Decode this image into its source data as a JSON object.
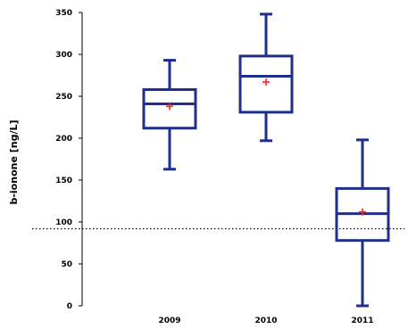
{
  "chart_data": {
    "type": "box",
    "title": "",
    "xlabel": "",
    "ylabel": "b-ionone [ng/L]",
    "ylim": [
      0,
      350
    ],
    "yticks": [
      0,
      50,
      100,
      150,
      200,
      250,
      300,
      350
    ],
    "categories": [
      "2009",
      "2010",
      "2011"
    ],
    "boxes": [
      {
        "category": "2009",
        "min": 163,
        "q1": 212,
        "median": 241,
        "q3": 258,
        "max": 293,
        "mean": 238
      },
      {
        "category": "2010",
        "min": 197,
        "q1": 231,
        "median": 274,
        "q3": 298,
        "max": 348,
        "mean": 267
      },
      {
        "category": "2011",
        "min": 0,
        "q1": 78,
        "median": 110,
        "q3": 140,
        "max": 198,
        "mean": 112
      }
    ],
    "reference_line": {
      "value": 92,
      "style": "dotted"
    },
    "grid": false,
    "legend": "none",
    "colors": {
      "box": "#1f2f8a",
      "mean_marker": "#ff2020",
      "reference_line": "#000000"
    }
  }
}
